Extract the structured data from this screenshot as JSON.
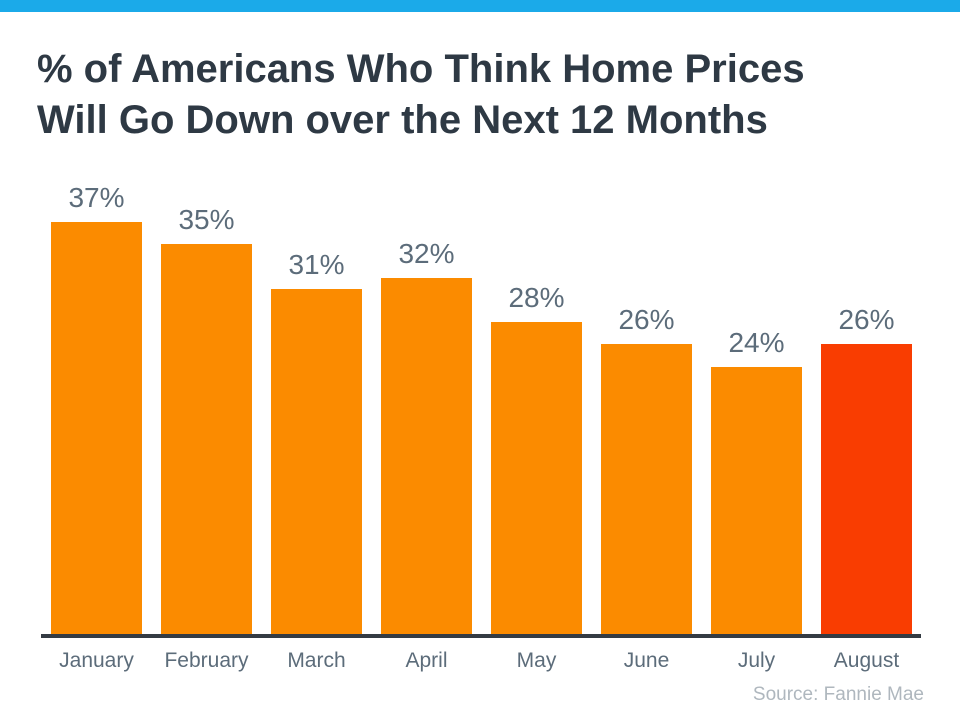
{
  "page": {
    "top_bar_color": "#1BAAE9",
    "background_color": "#FFFFFF"
  },
  "header": {
    "title_line1": "% of Americans Who Think Home Prices",
    "title_line2": "Will Go Down over the Next 12 Months",
    "title_color": "#2E3944"
  },
  "chart_data": {
    "type": "bar",
    "title": "% of Americans Who Think Home Prices Will Go Down over the Next 12 Months",
    "categories": [
      "January",
      "February",
      "March",
      "April",
      "May",
      "June",
      "July",
      "August"
    ],
    "values": [
      37,
      35,
      31,
      32,
      28,
      26,
      24,
      26
    ],
    "value_labels": [
      "37%",
      "35%",
      "31%",
      "32%",
      "28%",
      "26%",
      "24%",
      "26%"
    ],
    "xlabel": "",
    "ylabel": "",
    "ylim": [
      0,
      40
    ],
    "gridlines": false,
    "legend_position": "none",
    "y_axis_ticks_visible": false,
    "bar_color": "#FB8B00",
    "highlight_color": "#F93D01",
    "highlight_index": 7,
    "value_label_color": "#5C6C7A",
    "axis_label_color": "#5C6C7A",
    "axis_line_color": "#343B43"
  },
  "footer": {
    "source_text": "Source: Fannie Mae",
    "source_color": "#AFB7BE"
  }
}
